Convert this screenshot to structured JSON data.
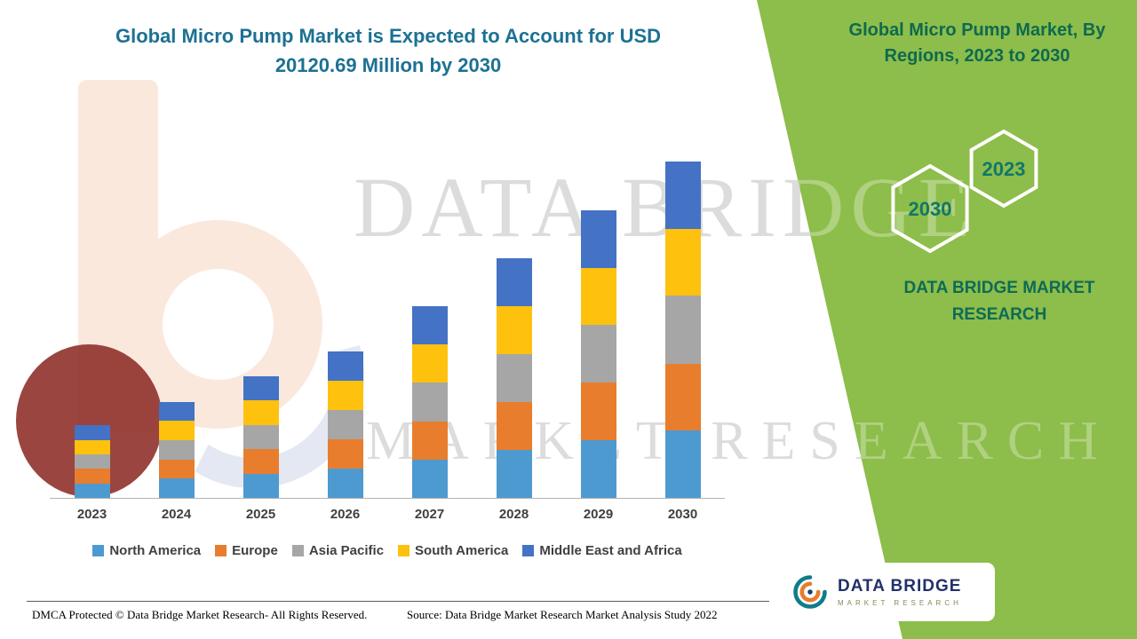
{
  "header": {
    "title_line1": "Global Micro Pump Market is Expected to Account for USD",
    "title_line2": "20120.69 Million by 2030"
  },
  "right_panel": {
    "heading": "Global Micro Pump Market, By Regions, 2023 to 2030",
    "hexagon_right_label": "2023",
    "hexagon_left_label": "2030",
    "brand_text": "DATA BRIDGE MARKET RESEARCH",
    "bg_color": "#8dbd4a"
  },
  "watermark": {
    "line1": "DATA BRIDGE",
    "line2": "MARKET RESEARCH"
  },
  "chart_data": {
    "type": "bar",
    "stacked": true,
    "title": "Global Micro Pump Market is Expected to Account for USD 20120.69 Million by 2030",
    "units": "USD Million",
    "categories": [
      "2023",
      "2024",
      "2025",
      "2026",
      "2027",
      "2028",
      "2029",
      "2030"
    ],
    "series": [
      {
        "name": "North America",
        "color": "#4d9ad1",
        "values": [
          870,
          1150,
          1460,
          1760,
          2300,
          2870,
          3450,
          4030
        ]
      },
      {
        "name": "Europe",
        "color": "#e87d2d",
        "values": [
          860,
          1140,
          1450,
          1740,
          2290,
          2860,
          3430,
          4010
        ]
      },
      {
        "name": "Asia Pacific",
        "color": "#a6a6a6",
        "values": [
          880,
          1160,
          1470,
          1770,
          2320,
          2890,
          3470,
          4060
        ]
      },
      {
        "name": "South America",
        "color": "#fec10e",
        "values": [
          860,
          1140,
          1440,
          1740,
          2280,
          2850,
          3420,
          4000
        ]
      },
      {
        "name": "Middle East and Africa",
        "color": "#4472c4",
        "values": [
          880,
          1140,
          1450,
          1750,
          2280,
          2860,
          3430,
          4020.69
        ]
      }
    ],
    "ylim": [
      0,
      20120.69
    ],
    "grid": false,
    "legend_position": "bottom"
  },
  "footer": {
    "dmca": "DMCA Protected © Data Bridge Market Research- All Rights Reserved.",
    "source": "Source: Data Bridge Market Research Market Analysis Study 2022"
  },
  "logo": {
    "name": "DATA BRIDGE",
    "subtitle": "MARKET RESEARCH"
  }
}
